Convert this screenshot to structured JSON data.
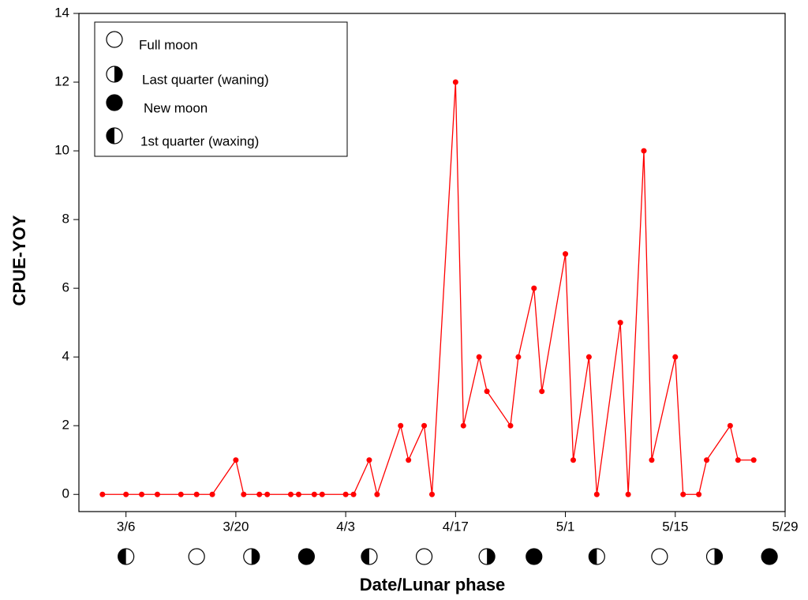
{
  "chart_data": {
    "type": "line",
    "x_label": "Date/Lunar phase",
    "y_label": "CPUE-YOY",
    "xlim": [
      "2/28",
      "5/29"
    ],
    "xticks": [
      "3/6",
      "3/20",
      "4/3",
      "4/17",
      "5/1",
      "5/15",
      "5/29"
    ],
    "ylim": [
      -0.5,
      14
    ],
    "yticks": [
      0,
      2,
      4,
      6,
      8,
      10,
      12,
      14
    ],
    "series": [
      {
        "name": "CPUE-YOY",
        "color": "#ff0000",
        "x": [
          "3/3",
          "3/6",
          "3/8",
          "3/10",
          "3/13",
          "3/15",
          "3/17",
          "3/20",
          "3/21",
          "3/23",
          "3/24",
          "3/27",
          "3/28",
          "3/30",
          "3/31",
          "4/3",
          "4/4",
          "4/6",
          "4/7",
          "4/10",
          "4/11",
          "4/13",
          "4/14",
          "4/17",
          "4/18",
          "4/20",
          "4/21",
          "4/24",
          "4/25",
          "4/27",
          "4/28",
          "5/1",
          "5/2",
          "5/4",
          "5/5",
          "5/8",
          "5/9",
          "5/11",
          "5/12",
          "5/15",
          "5/16",
          "5/18",
          "5/19",
          "5/22",
          "5/23",
          "5/25"
        ],
        "values": [
          0,
          0,
          0,
          0,
          0,
          0,
          0,
          1,
          0,
          0,
          0,
          0,
          0,
          0,
          0,
          0,
          0,
          1,
          0,
          2,
          1,
          2,
          0,
          12,
          2,
          4,
          3,
          2,
          4,
          6,
          3,
          7,
          1,
          4,
          0,
          5,
          0,
          10,
          1,
          4,
          0,
          0,
          1,
          2,
          1,
          1
        ]
      }
    ],
    "legend": [
      "Full moon",
      "Last quarter (waning)",
      "New moon",
      "1st quarter (waxing)"
    ],
    "moon_phases": [
      {
        "date": "3/6",
        "phase": "1st quarter (waxing)"
      },
      {
        "date": "3/15",
        "phase": "Full moon"
      },
      {
        "date": "3/22",
        "phase": "Last quarter (waning)"
      },
      {
        "date": "3/29",
        "phase": "New moon"
      },
      {
        "date": "4/6",
        "phase": "1st quarter (waxing)"
      },
      {
        "date": "4/13",
        "phase": "Full moon"
      },
      {
        "date": "4/21",
        "phase": "Last quarter (waning)"
      },
      {
        "date": "4/27",
        "phase": "New moon"
      },
      {
        "date": "5/5",
        "phase": "1st quarter (waxing)"
      },
      {
        "date": "5/13",
        "phase": "Full moon"
      },
      {
        "date": "5/20",
        "phase": "Last quarter (waning)"
      },
      {
        "date": "5/27",
        "phase": "New moon"
      }
    ]
  }
}
